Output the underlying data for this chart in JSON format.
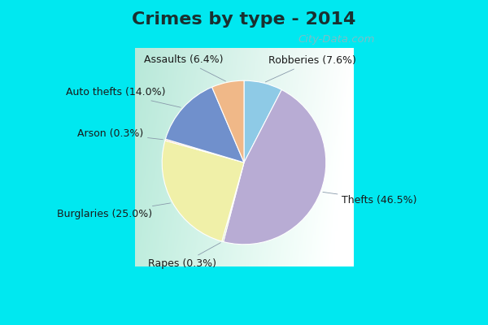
{
  "title": "Crimes by type - 2014",
  "ordered_slices": [
    {
      "label": "Robberies",
      "pct": 7.6,
      "color": "#8ecae6"
    },
    {
      "label": "Thefts",
      "pct": 46.5,
      "color": "#b8acd4"
    },
    {
      "label": "Rapes",
      "pct": 0.3,
      "color": "#c8e6a0"
    },
    {
      "label": "Burglaries",
      "pct": 25.0,
      "color": "#f0f0a8"
    },
    {
      "label": "Arson",
      "pct": 0.3,
      "color": "#f5c5a0"
    },
    {
      "label": "Auto thefts",
      "pct": 14.0,
      "color": "#7090cc"
    },
    {
      "label": "Assaults",
      "pct": 6.4,
      "color": "#f0b888"
    }
  ],
  "title_fontsize": 16,
  "title_color": "#1a3030",
  "label_fontsize": 9,
  "label_color": "#1a1a1a",
  "bg_cyan": "#00e8f0",
  "watermark": "City-Data.com",
  "watermark_color": "#90b8c0"
}
